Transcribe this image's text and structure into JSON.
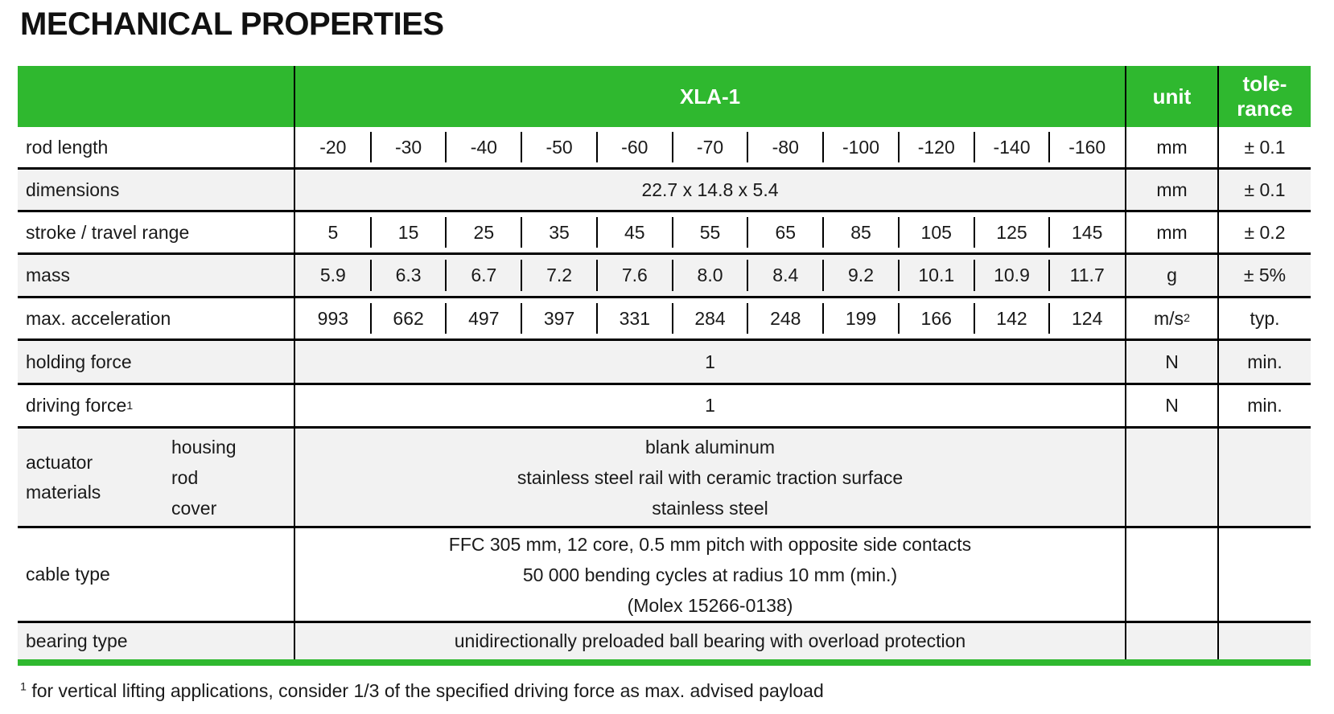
{
  "page": {
    "title": "MECHANICAL PROPERTIES",
    "footnote": {
      "sup": "1",
      "text": " for vertical lifting applications, consider 1/3 of the specified driving force as max. advised payload"
    }
  },
  "colors": {
    "header_green": "#2FB82F",
    "row_alt_gray": "#F2F2F2",
    "grid_line": "#000000"
  },
  "table": {
    "header": {
      "product": "XLA-1",
      "unit": "unit",
      "tolerance_line1": "tole-",
      "tolerance_line2": "rance"
    },
    "rows": {
      "rod_length": {
        "label": "rod length",
        "values": [
          "-20",
          "-30",
          "-40",
          "-50",
          "-60",
          "-70",
          "-80",
          "-100",
          "-120",
          "-140",
          "-160"
        ],
        "unit": "mm",
        "tolerance": "± 0.1"
      },
      "dimensions": {
        "label": "dimensions",
        "value": "22.7 x 14.8 x 5.4",
        "unit": "mm",
        "tolerance": "± 0.1"
      },
      "stroke": {
        "label": "stroke / travel range",
        "values": [
          "5",
          "15",
          "25",
          "35",
          "45",
          "55",
          "65",
          "85",
          "105",
          "125",
          "145"
        ],
        "unit": "mm",
        "tolerance": "± 0.2"
      },
      "mass": {
        "label": "mass",
        "values": [
          "5.9",
          "6.3",
          "6.7",
          "7.2",
          "7.6",
          "8.0",
          "8.4",
          "9.2",
          "10.1",
          "10.9",
          "11.7"
        ],
        "unit": "g",
        "tolerance": "± 5%"
      },
      "max_acceleration": {
        "label": "max. acceleration",
        "values": [
          "993",
          "662",
          "497",
          "397",
          "331",
          "284",
          "248",
          "199",
          "166",
          "142",
          "124"
        ],
        "unit_base": "m/s",
        "unit_sup": "2",
        "tolerance": "typ."
      },
      "holding_force": {
        "label": "holding force",
        "value": "1",
        "unit": "N",
        "tolerance": "min."
      },
      "driving_force": {
        "label_base": "driving force",
        "label_sup": "1",
        "value": "1",
        "unit": "N",
        "tolerance": "min."
      },
      "materials": {
        "label_line1": "actuator",
        "label_line2": "materials",
        "sub_labels": [
          "housing",
          "rod",
          "cover"
        ],
        "values": [
          "blank aluminum",
          "stainless steel rail with ceramic traction surface",
          "stainless steel"
        ]
      },
      "cable": {
        "label": "cable type",
        "values": [
          "FFC 305 mm, 12 core, 0.5 mm pitch with opposite side contacts",
          "50 000 bending cycles at radius 10 mm (min.)",
          "(Molex 15266-0138)"
        ]
      },
      "bearing": {
        "label": "bearing type",
        "value": "unidirectionally preloaded ball bearing with overload protection"
      }
    }
  }
}
